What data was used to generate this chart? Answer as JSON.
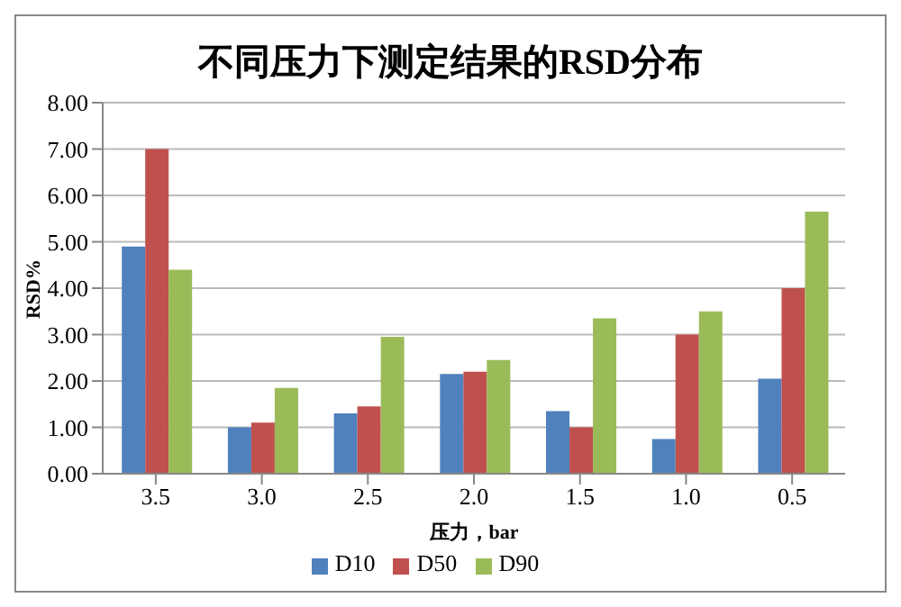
{
  "chart_data": {
    "type": "bar",
    "title": "不同压力下测定结果的RSD分布",
    "xlabel": "压力，bar",
    "ylabel": "RSD%",
    "categories": [
      "3.5",
      "3.0",
      "2.5",
      "2.0",
      "1.5",
      "1.0",
      "0.5"
    ],
    "series": [
      {
        "name": "D10",
        "color": "#4f81bd",
        "values": [
          4.9,
          1.0,
          1.3,
          2.15,
          1.35,
          0.75,
          2.05
        ]
      },
      {
        "name": "D50",
        "color": "#c0504d",
        "values": [
          7.0,
          1.1,
          1.45,
          2.2,
          1.0,
          3.0,
          4.0
        ]
      },
      {
        "name": "D90",
        "color": "#9bbb59",
        "values": [
          4.4,
          1.85,
          2.95,
          2.45,
          3.35,
          3.5,
          5.65
        ]
      }
    ],
    "ylim": [
      0,
      8
    ],
    "yticks": [
      {
        "value": 0,
        "label": "0.00"
      },
      {
        "value": 1,
        "label": "1.00"
      },
      {
        "value": 2,
        "label": "2.00"
      },
      {
        "value": 3,
        "label": "3.00"
      },
      {
        "value": 4,
        "label": "4.00"
      },
      {
        "value": 5,
        "label": "5.00"
      },
      {
        "value": 6,
        "label": "6.00"
      },
      {
        "value": 7,
        "label": "7.00"
      },
      {
        "value": 8,
        "label": "8.00"
      }
    ],
    "grid": "y",
    "legend": "bottom"
  }
}
